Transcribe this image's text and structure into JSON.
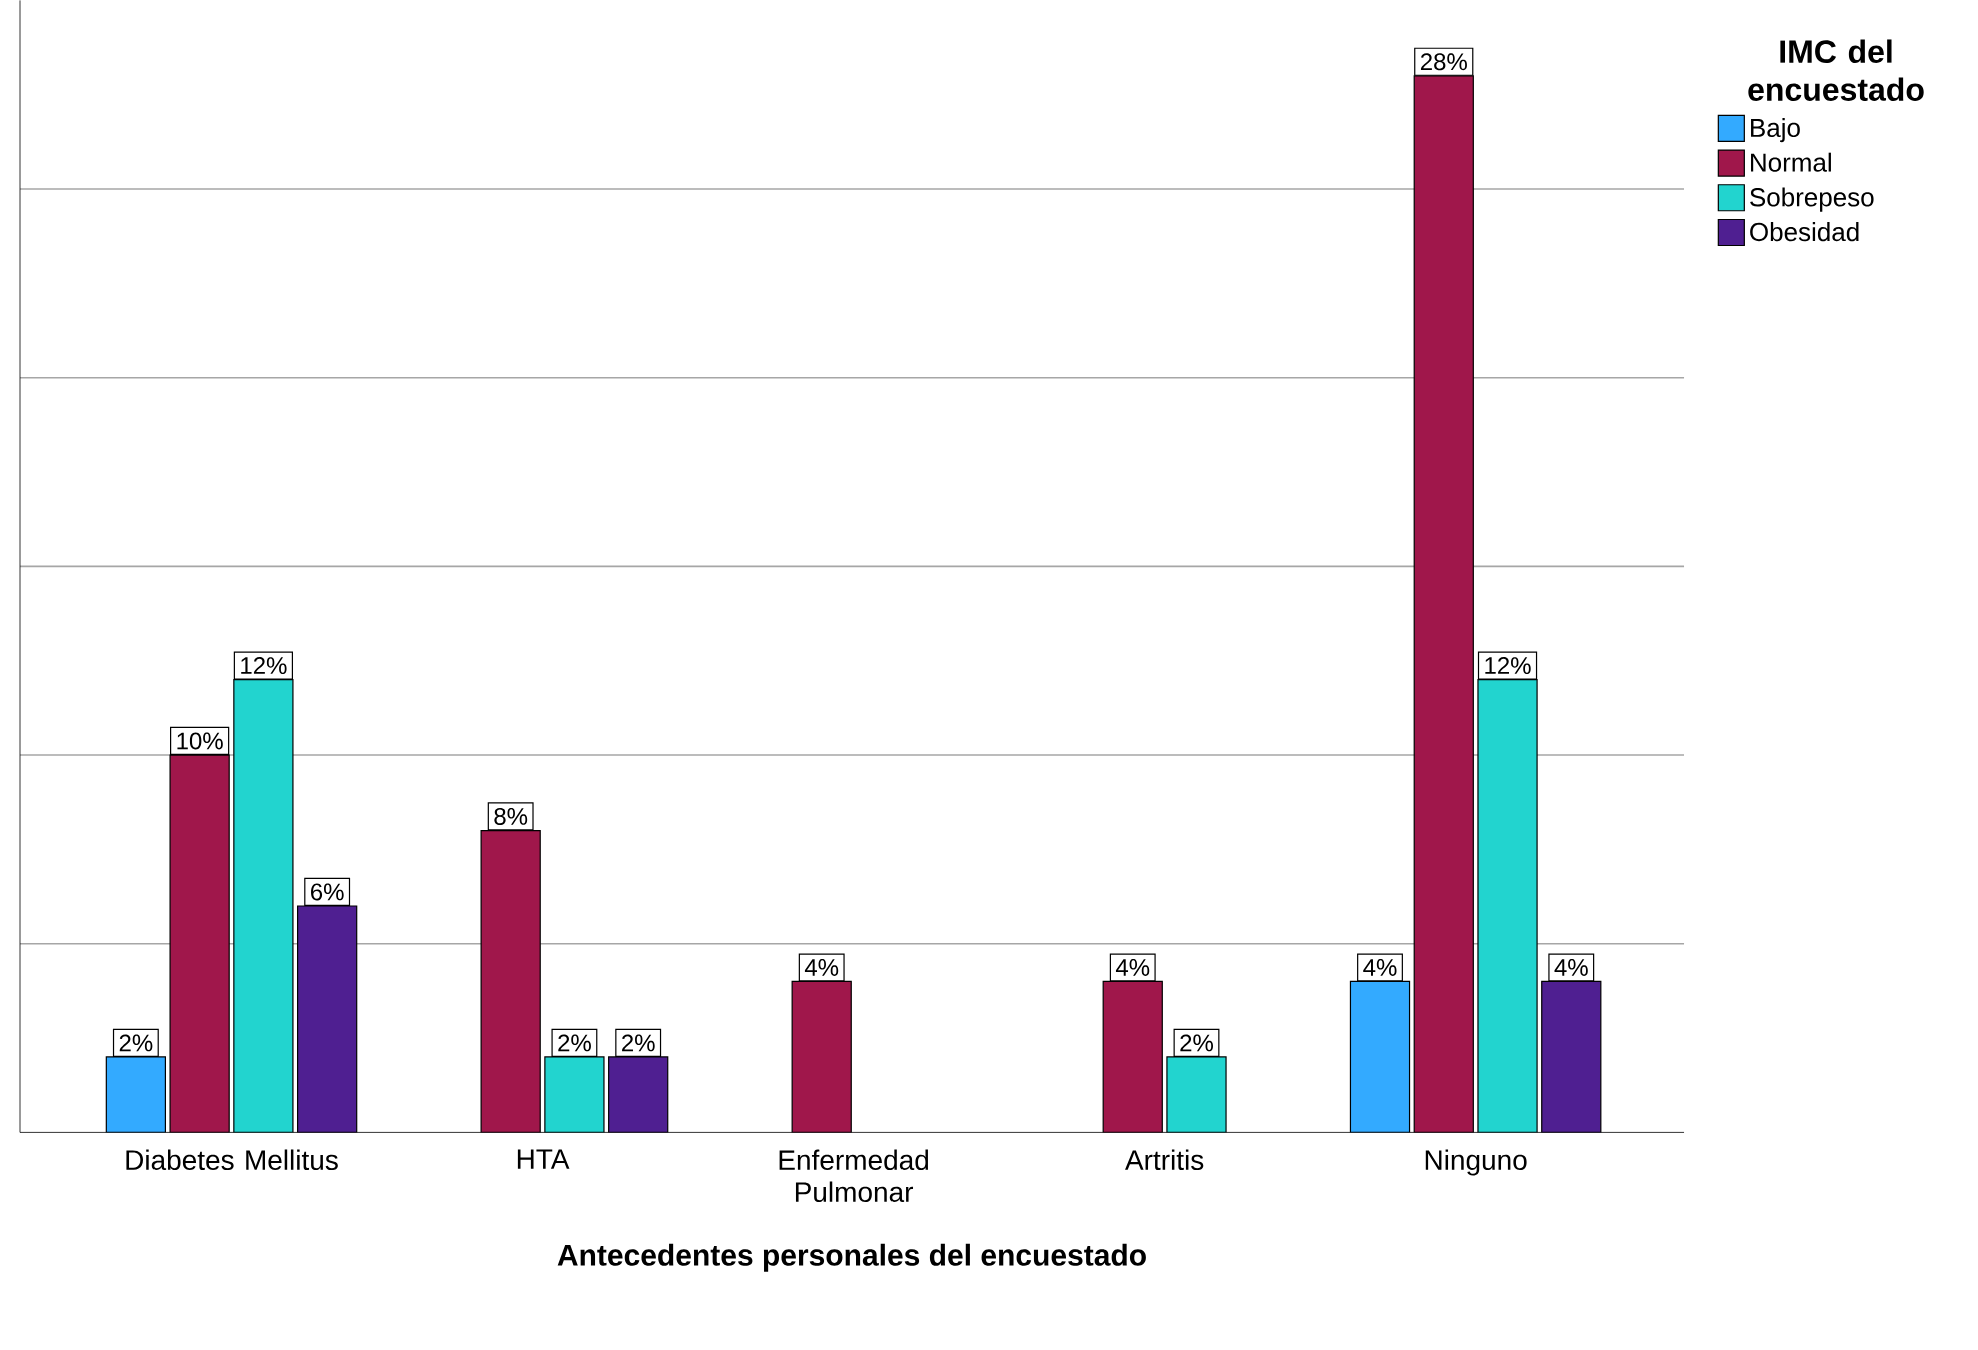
{
  "chart_data": {
    "type": "bar",
    "xlabel": "Antecedentes personales del encuestado",
    "legend_title": "IMC del encuestado",
    "categories": [
      "Diabetes Mellitus",
      "HTA",
      "Enfermedad Pulmonar",
      "Artritis",
      "Ninguno"
    ],
    "series": [
      {
        "name": "Bajo",
        "color": "#33aaff",
        "values": [
          2,
          null,
          null,
          null,
          4
        ],
        "value_labels": [
          "2%",
          null,
          null,
          null,
          "4%"
        ]
      },
      {
        "name": "Normal",
        "color": "#a0174b",
        "values": [
          10,
          8,
          4,
          4,
          28
        ],
        "value_labels": [
          "10%",
          "8%",
          "4%",
          "4%",
          "28%"
        ]
      },
      {
        "name": "Sobrepeso",
        "color": "#22d4cf",
        "values": [
          12,
          2,
          null,
          2,
          12
        ],
        "value_labels": [
          "12%",
          "2%",
          null,
          "2%",
          "12%"
        ]
      },
      {
        "name": "Obesidad",
        "color": "#4f1f91",
        "values": [
          6,
          2,
          null,
          null,
          4
        ],
        "value_labels": [
          "6%",
          "2%",
          null,
          null,
          "4%"
        ]
      }
    ],
    "ylim": [
      0,
      30
    ],
    "yticks": [
      {
        "value": 5,
        "label": null
      },
      {
        "value": 10,
        "label": null
      },
      {
        "value": 15,
        "label": null
      },
      {
        "value": 20,
        "label": null
      },
      {
        "value": 25,
        "label": null
      }
    ],
    "grid": "y",
    "legend": "top right",
    "tick_labels": "x"
  }
}
